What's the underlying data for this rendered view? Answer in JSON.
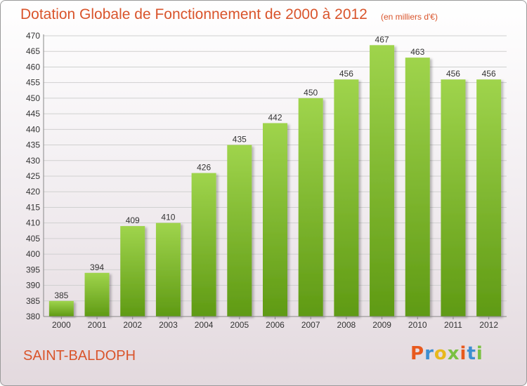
{
  "header": {
    "title": "Dotation Globale de Fonctionnement de 2000 à 2012",
    "unit": "(en milliers d'€)"
  },
  "footer": {
    "town": "SAINT-BALDOPH",
    "logo_letters": [
      "P",
      "r",
      "o",
      "x",
      "i",
      "t",
      "i"
    ],
    "logo_colors": [
      "#e8591e",
      "#3d8fd1",
      "#e8b81c",
      "#7ac143",
      "#e8591e",
      "#3d8fd1",
      "#7ac143"
    ]
  },
  "colors": {
    "accent": "#d9542b",
    "bar_top": "#9fd44c",
    "bar_bottom": "#5f9a14",
    "grid": "#d0d0d0"
  },
  "chart_data": {
    "type": "bar",
    "categories": [
      "2000",
      "2001",
      "2002",
      "2003",
      "2004",
      "2005",
      "2006",
      "2007",
      "2008",
      "2009",
      "2010",
      "2011",
      "2012"
    ],
    "values": [
      385,
      394,
      409,
      410,
      426,
      435,
      442,
      450,
      456,
      467,
      463,
      456,
      456
    ],
    "yticks": [
      380,
      385,
      390,
      395,
      400,
      405,
      410,
      415,
      420,
      425,
      430,
      435,
      440,
      445,
      450,
      455,
      460,
      465,
      470
    ],
    "ylim": [
      380,
      470
    ],
    "grid": true,
    "legend": "none"
  }
}
